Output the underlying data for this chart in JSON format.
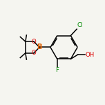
{
  "bg_color": "#f5f5f0",
  "bond_color": "#000000",
  "atom_colors": {
    "B": "#e06000",
    "O": "#dd0000",
    "F": "#008800",
    "Cl": "#008800",
    "OH": "#dd0000"
  },
  "line_width": 1.1,
  "font_size": 6.2,
  "fig_size": [
    1.52,
    1.52
  ],
  "dpi": 100
}
